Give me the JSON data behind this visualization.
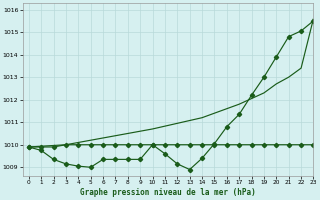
{
  "title": "Graphe pression niveau de la mer (hPa)",
  "background_color": "#d6f0f0",
  "grid_color": "#b8dada",
  "line_color": "#1a5c1a",
  "xlim": [
    -0.5,
    23
  ],
  "ylim": [
    1008.6,
    1016.3
  ],
  "yticks": [
    1009,
    1010,
    1011,
    1012,
    1013,
    1014,
    1015,
    1016
  ],
  "xticks": [
    0,
    1,
    2,
    3,
    4,
    5,
    6,
    7,
    8,
    9,
    10,
    11,
    12,
    13,
    14,
    15,
    16,
    17,
    18,
    19,
    20,
    21,
    22,
    23
  ],
  "series_flat": {
    "x": [
      0,
      1,
      2,
      3,
      4,
      5,
      6,
      7,
      8,
      9,
      10,
      11,
      12,
      13,
      14,
      15,
      16,
      17,
      18,
      19,
      20,
      21,
      22,
      23
    ],
    "y": [
      1009.9,
      1009.9,
      1009.9,
      1010.0,
      1010.0,
      1010.0,
      1010.0,
      1010.0,
      1010.0,
      1010.0,
      1010.0,
      1010.0,
      1010.0,
      1010.0,
      1010.0,
      1010.0,
      1010.0,
      1010.0,
      1010.0,
      1010.0,
      1010.0,
      1010.0,
      1010.0,
      1010.0
    ]
  },
  "series_wavy": {
    "x": [
      0,
      1,
      2,
      3,
      4,
      5,
      6,
      7,
      8,
      9,
      10,
      11,
      12,
      13,
      14,
      15,
      16,
      17,
      18,
      19,
      20,
      21,
      22,
      23
    ],
    "y": [
      1009.9,
      1009.75,
      1009.35,
      1009.15,
      1009.05,
      1009.0,
      1009.35,
      1009.35,
      1009.35,
      1009.35,
      1010.0,
      1009.6,
      1009.15,
      1008.9,
      1009.4,
      1010.05,
      1010.8,
      1011.35,
      1012.2,
      1013.0,
      1013.9,
      1014.8,
      1015.05,
      1015.5
    ]
  },
  "series_diagonal": {
    "x": [
      0,
      3,
      10,
      14,
      17,
      19,
      20,
      21,
      22,
      23
    ],
    "y": [
      1009.9,
      1010.0,
      1010.7,
      1011.2,
      1011.8,
      1012.3,
      1012.7,
      1013.0,
      1013.4,
      1015.6
    ]
  }
}
